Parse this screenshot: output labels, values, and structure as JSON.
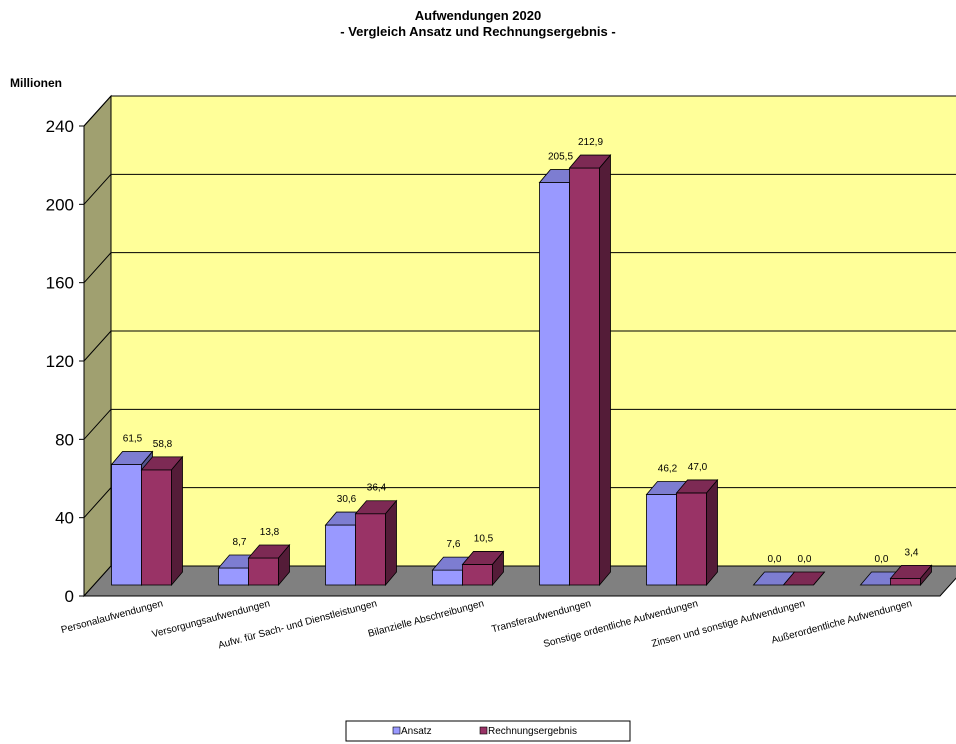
{
  "chart_data": {
    "type": "bar",
    "title": "Aufwendungen 2020",
    "subtitle": "- Vergleich Ansatz und Rechnungsergebnis -",
    "ylabel": "Millionen",
    "xlabel": "",
    "ylim": [
      0,
      240
    ],
    "yticks": [
      "0",
      "40",
      "80",
      "120",
      "160",
      "200",
      "240"
    ],
    "grid": true,
    "legend_position": "bottom-center",
    "plot_background": "#FFFF99",
    "floor_color": "#808080",
    "wall_color": "#A0A070",
    "categories": [
      "Personalaufwendungen",
      "Versorgungsaufwendungen",
      "Aufw. für Sach- und Dienstleistungen",
      "Bilanzielle Abschreibungen",
      "Transferaufwendungen",
      "Sonstige ordentliche Aufwendungen",
      "Zinsen und sonstige Aufwendungen",
      "Außerordentliche Aufwendungen"
    ],
    "series": [
      {
        "name": "Ansatz",
        "color": "#9999FF",
        "values": [
          61.5,
          8.7,
          30.6,
          7.6,
          205.5,
          46.2,
          0.0,
          0.0
        ],
        "labels": [
          "61,5",
          "8,7",
          "30,6",
          "7,6",
          "205,5",
          "46,2",
          "0,0",
          "0,0"
        ]
      },
      {
        "name": "Rechnungsergebnis",
        "color": "#993366",
        "values": [
          58.8,
          13.8,
          36.4,
          10.5,
          212.9,
          47.0,
          0.0,
          3.4
        ],
        "labels": [
          "58,8",
          "13,8",
          "36,4",
          "10,5",
          "212,9",
          "47,0",
          "0,0",
          "3,4"
        ]
      }
    ]
  }
}
